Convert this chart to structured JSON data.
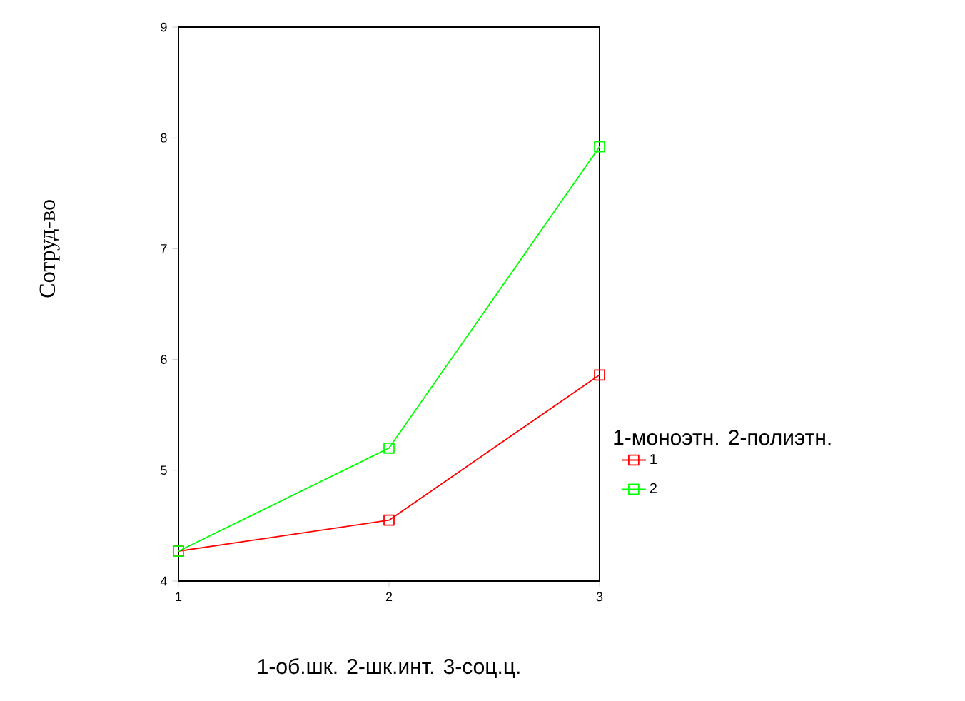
{
  "chart_data": {
    "type": "line",
    "xlabel": "1-об.шк. 2-шк.инт. 3-соц.ц.",
    "ylabel": "Сотруд-во",
    "legend_title": "1-моноэтн. 2-полиэтн.",
    "x": [
      1,
      2,
      3
    ],
    "series": [
      {
        "name": "1",
        "color": "#ff0000",
        "values": [
          4.27,
          4.55,
          5.86
        ]
      },
      {
        "name": "2",
        "color": "#00ff00",
        "values": [
          4.27,
          5.2,
          7.92
        ]
      }
    ],
    "xlim": [
      1,
      3
    ],
    "xticks": [
      1,
      2,
      3
    ],
    "ylim": [
      4,
      9
    ],
    "yticks": [
      4,
      5,
      6,
      7,
      8,
      9
    ],
    "marker": "square",
    "legend": "right",
    "grid": false
  }
}
